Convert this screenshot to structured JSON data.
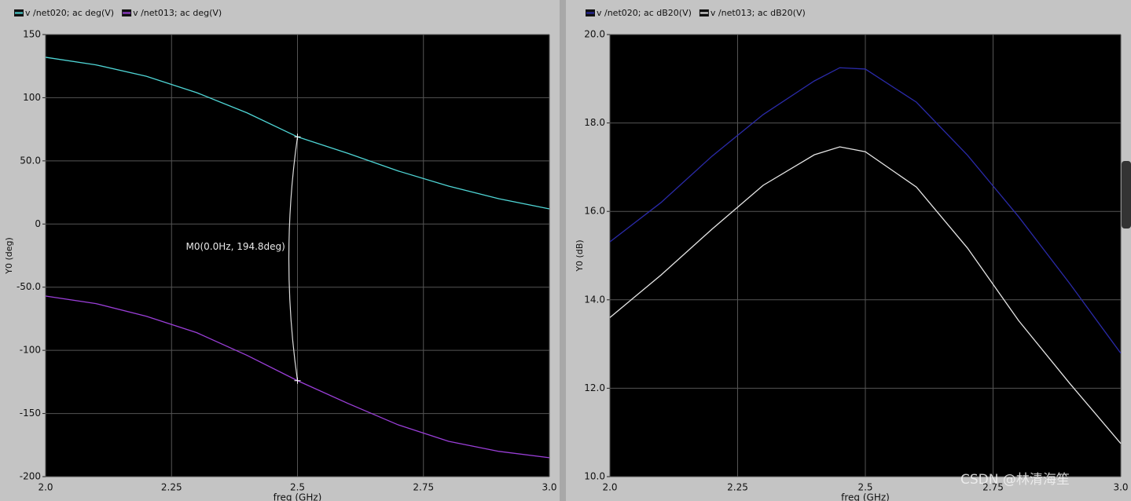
{
  "chart_data": [
    {
      "type": "line",
      "xlabel": "freq (GHz)",
      "ylabel": "Y0 (deg)",
      "xlim": [
        2.0,
        3.0
      ],
      "ylim": [
        -200,
        150
      ],
      "xticks": [
        {
          "value": 2.0,
          "label": "2.0"
        },
        2.25,
        2.5,
        2.75,
        {
          "value": 3.0,
          "label": "3.0"
        }
      ],
      "yticks": [
        -200,
        -150,
        -100,
        {
          "value": -50,
          "label": "-50.0"
        },
        0,
        {
          "value": 50,
          "label": "50.0"
        },
        100,
        150
      ],
      "grid": true,
      "x": [
        2.0,
        2.1,
        2.2,
        2.3,
        2.4,
        2.5,
        2.6,
        2.7,
        2.8,
        2.9,
        3.0
      ],
      "series": [
        {
          "name": "v /net020; ac deg(V)",
          "color": "#4fd6d6",
          "values": [
            132,
            126,
            117,
            104,
            88,
            69,
            56,
            42,
            30,
            20,
            12
          ]
        },
        {
          "name": "v /net013; ac deg(V)",
          "color": "#9b3fd9",
          "values": [
            -57,
            -63,
            -73,
            -86,
            -104,
            -124,
            -142,
            -159,
            -172,
            -180,
            -185
          ]
        }
      ],
      "annotation": "M0(0.0Hz, 194.8deg)",
      "marker_x": 2.5
    },
    {
      "type": "line",
      "xlabel": "freq (GHz)",
      "ylabel": "Y0 (dB)",
      "xlim": [
        2.0,
        3.0
      ],
      "ylim": [
        10,
        20
      ],
      "xticks": [
        {
          "value": 2.0,
          "label": "2.0"
        },
        2.25,
        2.5,
        2.75,
        {
          "value": 3.0,
          "label": "3.0"
        }
      ],
      "yticks": [
        {
          "value": 10,
          "label": "10.0"
        },
        {
          "value": 12,
          "label": "12.0"
        },
        {
          "value": 14,
          "label": "14.0"
        },
        {
          "value": 16,
          "label": "16.0"
        },
        {
          "value": 18,
          "label": "18.0"
        },
        {
          "value": 20,
          "label": "20.0"
        }
      ],
      "grid": true,
      "x": [
        2.0,
        2.1,
        2.2,
        2.3,
        2.4,
        2.45,
        2.5,
        2.6,
        2.7,
        2.8,
        2.9,
        3.0
      ],
      "series": [
        {
          "name": "v /net020; ac dB20(V)",
          "color": "#2a2aa8",
          "values": [
            15.31,
            16.2,
            17.25,
            18.19,
            18.95,
            19.25,
            19.22,
            18.47,
            17.27,
            15.88,
            14.37,
            12.79
          ]
        },
        {
          "name": "v /net013; ac dB20(V)",
          "color": "#e6e6e6",
          "values": [
            13.6,
            14.56,
            15.6,
            16.59,
            17.28,
            17.46,
            17.35,
            16.55,
            15.17,
            13.53,
            12.11,
            10.75
          ]
        }
      ]
    }
  ],
  "watermark": "CSDN @林清海笙"
}
